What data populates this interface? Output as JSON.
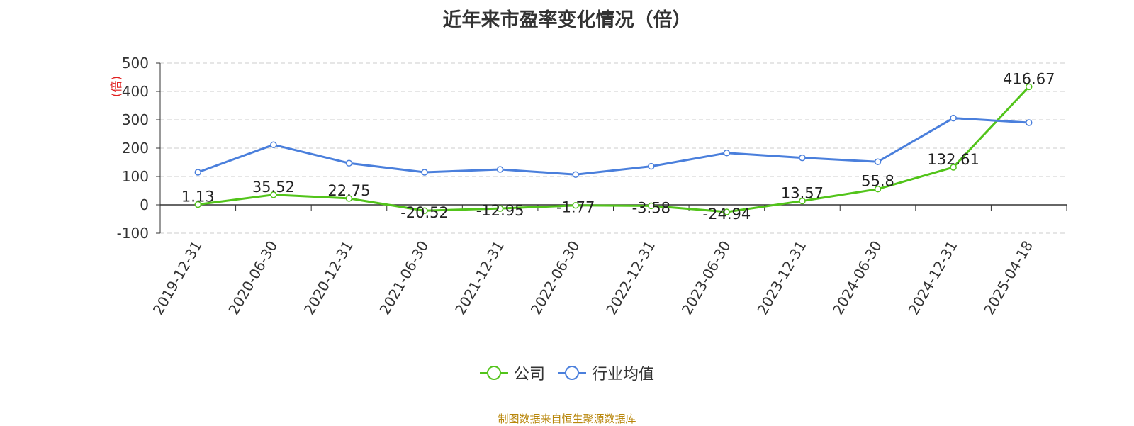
{
  "chart_data": {
    "type": "line",
    "title": "近年来市盈率变化情况（倍）",
    "ylabel": "(倍)",
    "xlabel": "",
    "categories": [
      "2019-12-31",
      "2020-06-30",
      "2020-12-31",
      "2021-06-30",
      "2021-12-31",
      "2022-06-30",
      "2022-12-31",
      "2023-06-30",
      "2023-12-31",
      "2024-06-30",
      "2024-12-31",
      "2025-04-18"
    ],
    "series": [
      {
        "name": "公司",
        "color": "#52c41a",
        "values": [
          1.13,
          35.52,
          22.75,
          -20.52,
          -12.95,
          -1.77,
          -3.58,
          -24.94,
          13.57,
          55.8,
          132.61,
          416.67
        ],
        "labels": [
          "1.13",
          "35.52",
          "22.75",
          "-20.52",
          "-12.95",
          "-1.77",
          "-3.58",
          "-24.94",
          "13.57",
          "55.8",
          "132.61",
          "416.67"
        ]
      },
      {
        "name": "行业均值",
        "color": "#4a7fdc",
        "values": [
          115,
          212,
          147,
          115,
          125,
          107,
          136,
          183,
          166,
          152,
          306,
          290
        ]
      }
    ],
    "ylim": [
      -100,
      500
    ],
    "yticks": [
      -100,
      0,
      100,
      200,
      300,
      400,
      500
    ],
    "grid": true,
    "legend_position": "bottom"
  },
  "footer": {
    "source": "制图数据来自恒生聚源数据库"
  }
}
